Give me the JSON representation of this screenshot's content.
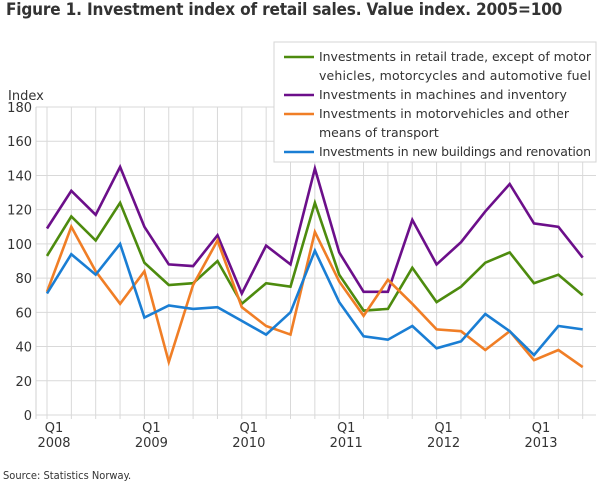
{
  "chart_data": {
    "type": "line",
    "title": "Figure 1. Investment index of retail sales. Value index. 2005=100",
    "ylabel": "Index",
    "xlabel": "",
    "ylim": [
      0,
      180
    ],
    "yticks": [
      0,
      20,
      40,
      60,
      80,
      100,
      120,
      140,
      160,
      180
    ],
    "grid": true,
    "legend_position": "top-right",
    "x": [
      "2008Q1",
      "2008Q2",
      "2008Q3",
      "2008Q4",
      "2009Q1",
      "2009Q2",
      "2009Q3",
      "2009Q4",
      "2010Q1",
      "2010Q2",
      "2010Q3",
      "2010Q4",
      "2011Q1",
      "2011Q2",
      "2011Q3",
      "2011Q4",
      "2012Q1",
      "2012Q2",
      "2012Q3",
      "2012Q4",
      "2013Q1",
      "2013Q2",
      "2013Q3"
    ],
    "xtick_labels": [
      {
        "index": 0,
        "line1": "Q1",
        "line2": "2008"
      },
      {
        "index": 4,
        "line1": "Q1",
        "line2": "2009"
      },
      {
        "index": 8,
        "line1": "Q1",
        "line2": "2010"
      },
      {
        "index": 12,
        "line1": "Q1",
        "line2": "2011"
      },
      {
        "index": 16,
        "line1": "Q1",
        "line2": "2012"
      },
      {
        "index": 20,
        "line1": "Q1",
        "line2": "2013"
      }
    ],
    "series": [
      {
        "name": "Investments in retail trade, except of motor vehicles, motorcycles and automotive fuel",
        "legend_lines": [
          "Investments in retail trade, except of motor",
          "vehicles, motorcycles and automotive fuel"
        ],
        "color": "#4d8b0e",
        "values": [
          93,
          116,
          102,
          124,
          89,
          76,
          77,
          90,
          65,
          77,
          75,
          124,
          82,
          61,
          62,
          86,
          66,
          75,
          89,
          95,
          77,
          82,
          70
        ]
      },
      {
        "name": "Investments in machines and inventory",
        "legend_lines": [
          "Investments in machines and inventory"
        ],
        "color": "#6c0f8a",
        "values": [
          109,
          131,
          117,
          145,
          110,
          88,
          87,
          105,
          71,
          99,
          88,
          144,
          95,
          72,
          72,
          114,
          88,
          101,
          119,
          135,
          112,
          110,
          92
        ]
      },
      {
        "name": "Investments in motorvehicles and other means of transport",
        "legend_lines": [
          "Investments in motorvehicles and other",
          "means of transport"
        ],
        "color": "#f07e26",
        "values": [
          72,
          110,
          84,
          65,
          84,
          31,
          76,
          102,
          63,
          52,
          47,
          107,
          78,
          58,
          79,
          65,
          50,
          49,
          38,
          49,
          32,
          38,
          28
        ]
      },
      {
        "name": "Investments in new buildings and renovation",
        "legend_lines": [
          "Investments in new buildings and renovation"
        ],
        "color": "#1a7ed4",
        "values": [
          71,
          94,
          82,
          100,
          57,
          64,
          62,
          63,
          55,
          47,
          60,
          96,
          66,
          46,
          44,
          52,
          39,
          43,
          59,
          49,
          35,
          52,
          50
        ]
      }
    ]
  },
  "source": "Source: Statistics Norway."
}
